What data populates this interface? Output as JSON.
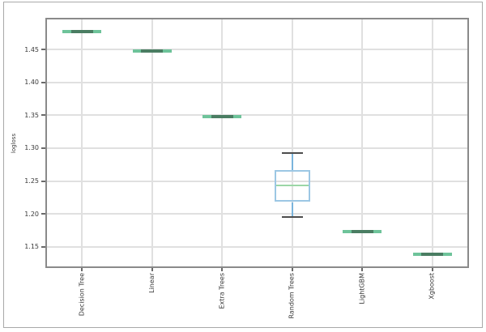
{
  "chart_data": {
    "type": "boxplot",
    "title": "",
    "ylabel": "logloss",
    "xlabel": "",
    "categories": [
      "Decision Tree",
      "Linear",
      "Extra Trees",
      "Random Trees",
      "LightGBM",
      "Xgboost"
    ],
    "yticks": [
      1.15,
      1.2,
      1.25,
      1.3,
      1.35,
      1.4,
      1.45
    ],
    "ylim": [
      1.12,
      1.496
    ],
    "grid": true,
    "legend_position": "none",
    "boxes": [
      {
        "label": "Decision Tree",
        "whislo": 1.477,
        "q1": 1.477,
        "med": 1.477,
        "q3": 1.477,
        "whishi": 1.477
      },
      {
        "label": "Linear",
        "whislo": 1.448,
        "q1": 1.448,
        "med": 1.448,
        "q3": 1.448,
        "whishi": 1.448
      },
      {
        "label": "Extra Trees",
        "whislo": 1.348,
        "q1": 1.348,
        "med": 1.348,
        "q3": 1.348,
        "whishi": 1.348
      },
      {
        "label": "Random Trees",
        "whislo": 1.195,
        "q1": 1.218,
        "med": 1.243,
        "q3": 1.267,
        "whishi": 1.292
      },
      {
        "label": "LightGBM",
        "whislo": 1.173,
        "q1": 1.173,
        "med": 1.173,
        "q3": 1.173,
        "whishi": 1.173
      },
      {
        "label": "Xgboost",
        "whislo": 1.138,
        "q1": 1.138,
        "med": 1.138,
        "q3": 1.138,
        "whishi": 1.138
      }
    ],
    "colors": {
      "box_edge": "#9cc7e4",
      "whisker": "#7ab4dc",
      "cap": "#4d4d4d",
      "median": "#9bd6a6",
      "flat_line_outer": "#6ec39a",
      "flat_line_inner": "#4a7d62",
      "grid": "#e0e0e0",
      "spine": "#8a8a8a",
      "tick": "#6a6a6a",
      "text": "#3a3a3a",
      "figure_border": "#a9a9a9",
      "background": "#ffffff"
    }
  }
}
